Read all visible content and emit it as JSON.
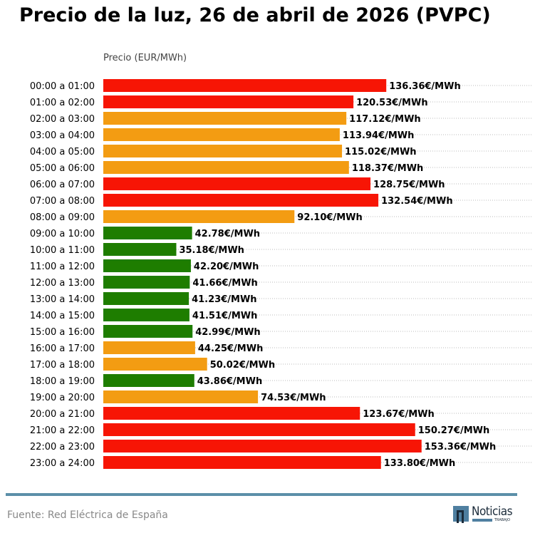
{
  "chart_data": {
    "type": "bar",
    "orientation": "horizontal",
    "title": "Precio de la luz, 26 de abril de 2026 (PVPC)",
    "ylabel": "Precio (EUR/MWh)",
    "unit_suffix": "€/MWh",
    "xlim": [
      0,
      207
    ],
    "grid": "horizontal dotted",
    "categories": [
      "00:00 a 01:00",
      "01:00 a 02:00",
      "02:00 a 03:00",
      "03:00 a 04:00",
      "04:00 a 05:00",
      "05:00 a 06:00",
      "06:00 a 07:00",
      "07:00 a 08:00",
      "08:00 a 09:00",
      "09:00 a 10:00",
      "10:00 a 11:00",
      "11:00 a 12:00",
      "12:00 a 13:00",
      "13:00 a 14:00",
      "14:00 a 15:00",
      "15:00 a 16:00",
      "16:00 a 17:00",
      "17:00 a 18:00",
      "18:00 a 19:00",
      "19:00 a 20:00",
      "20:00 a 21:00",
      "21:00 a 22:00",
      "22:00 a 23:00",
      "23:00 a 24:00"
    ],
    "values": [
      136.36,
      120.53,
      117.12,
      113.94,
      115.02,
      118.37,
      128.75,
      132.54,
      92.1,
      42.78,
      35.18,
      42.2,
      41.66,
      41.23,
      41.51,
      42.99,
      44.25,
      50.02,
      43.86,
      74.53,
      123.67,
      150.27,
      153.36,
      133.8
    ],
    "levels": [
      "high",
      "high",
      "mid",
      "mid",
      "mid",
      "mid",
      "high",
      "high",
      "mid",
      "low",
      "low",
      "low",
      "low",
      "low",
      "low",
      "low",
      "mid",
      "mid",
      "low",
      "mid",
      "high",
      "high",
      "high",
      "high"
    ],
    "colors": {
      "high": "#f71505",
      "mid": "#f39c12",
      "low": "#1e7d00"
    }
  },
  "footer": {
    "source": "Fuente: Red Eléctrica de España",
    "logo_text": "Noticias",
    "logo_sub": "TRABAJO"
  }
}
